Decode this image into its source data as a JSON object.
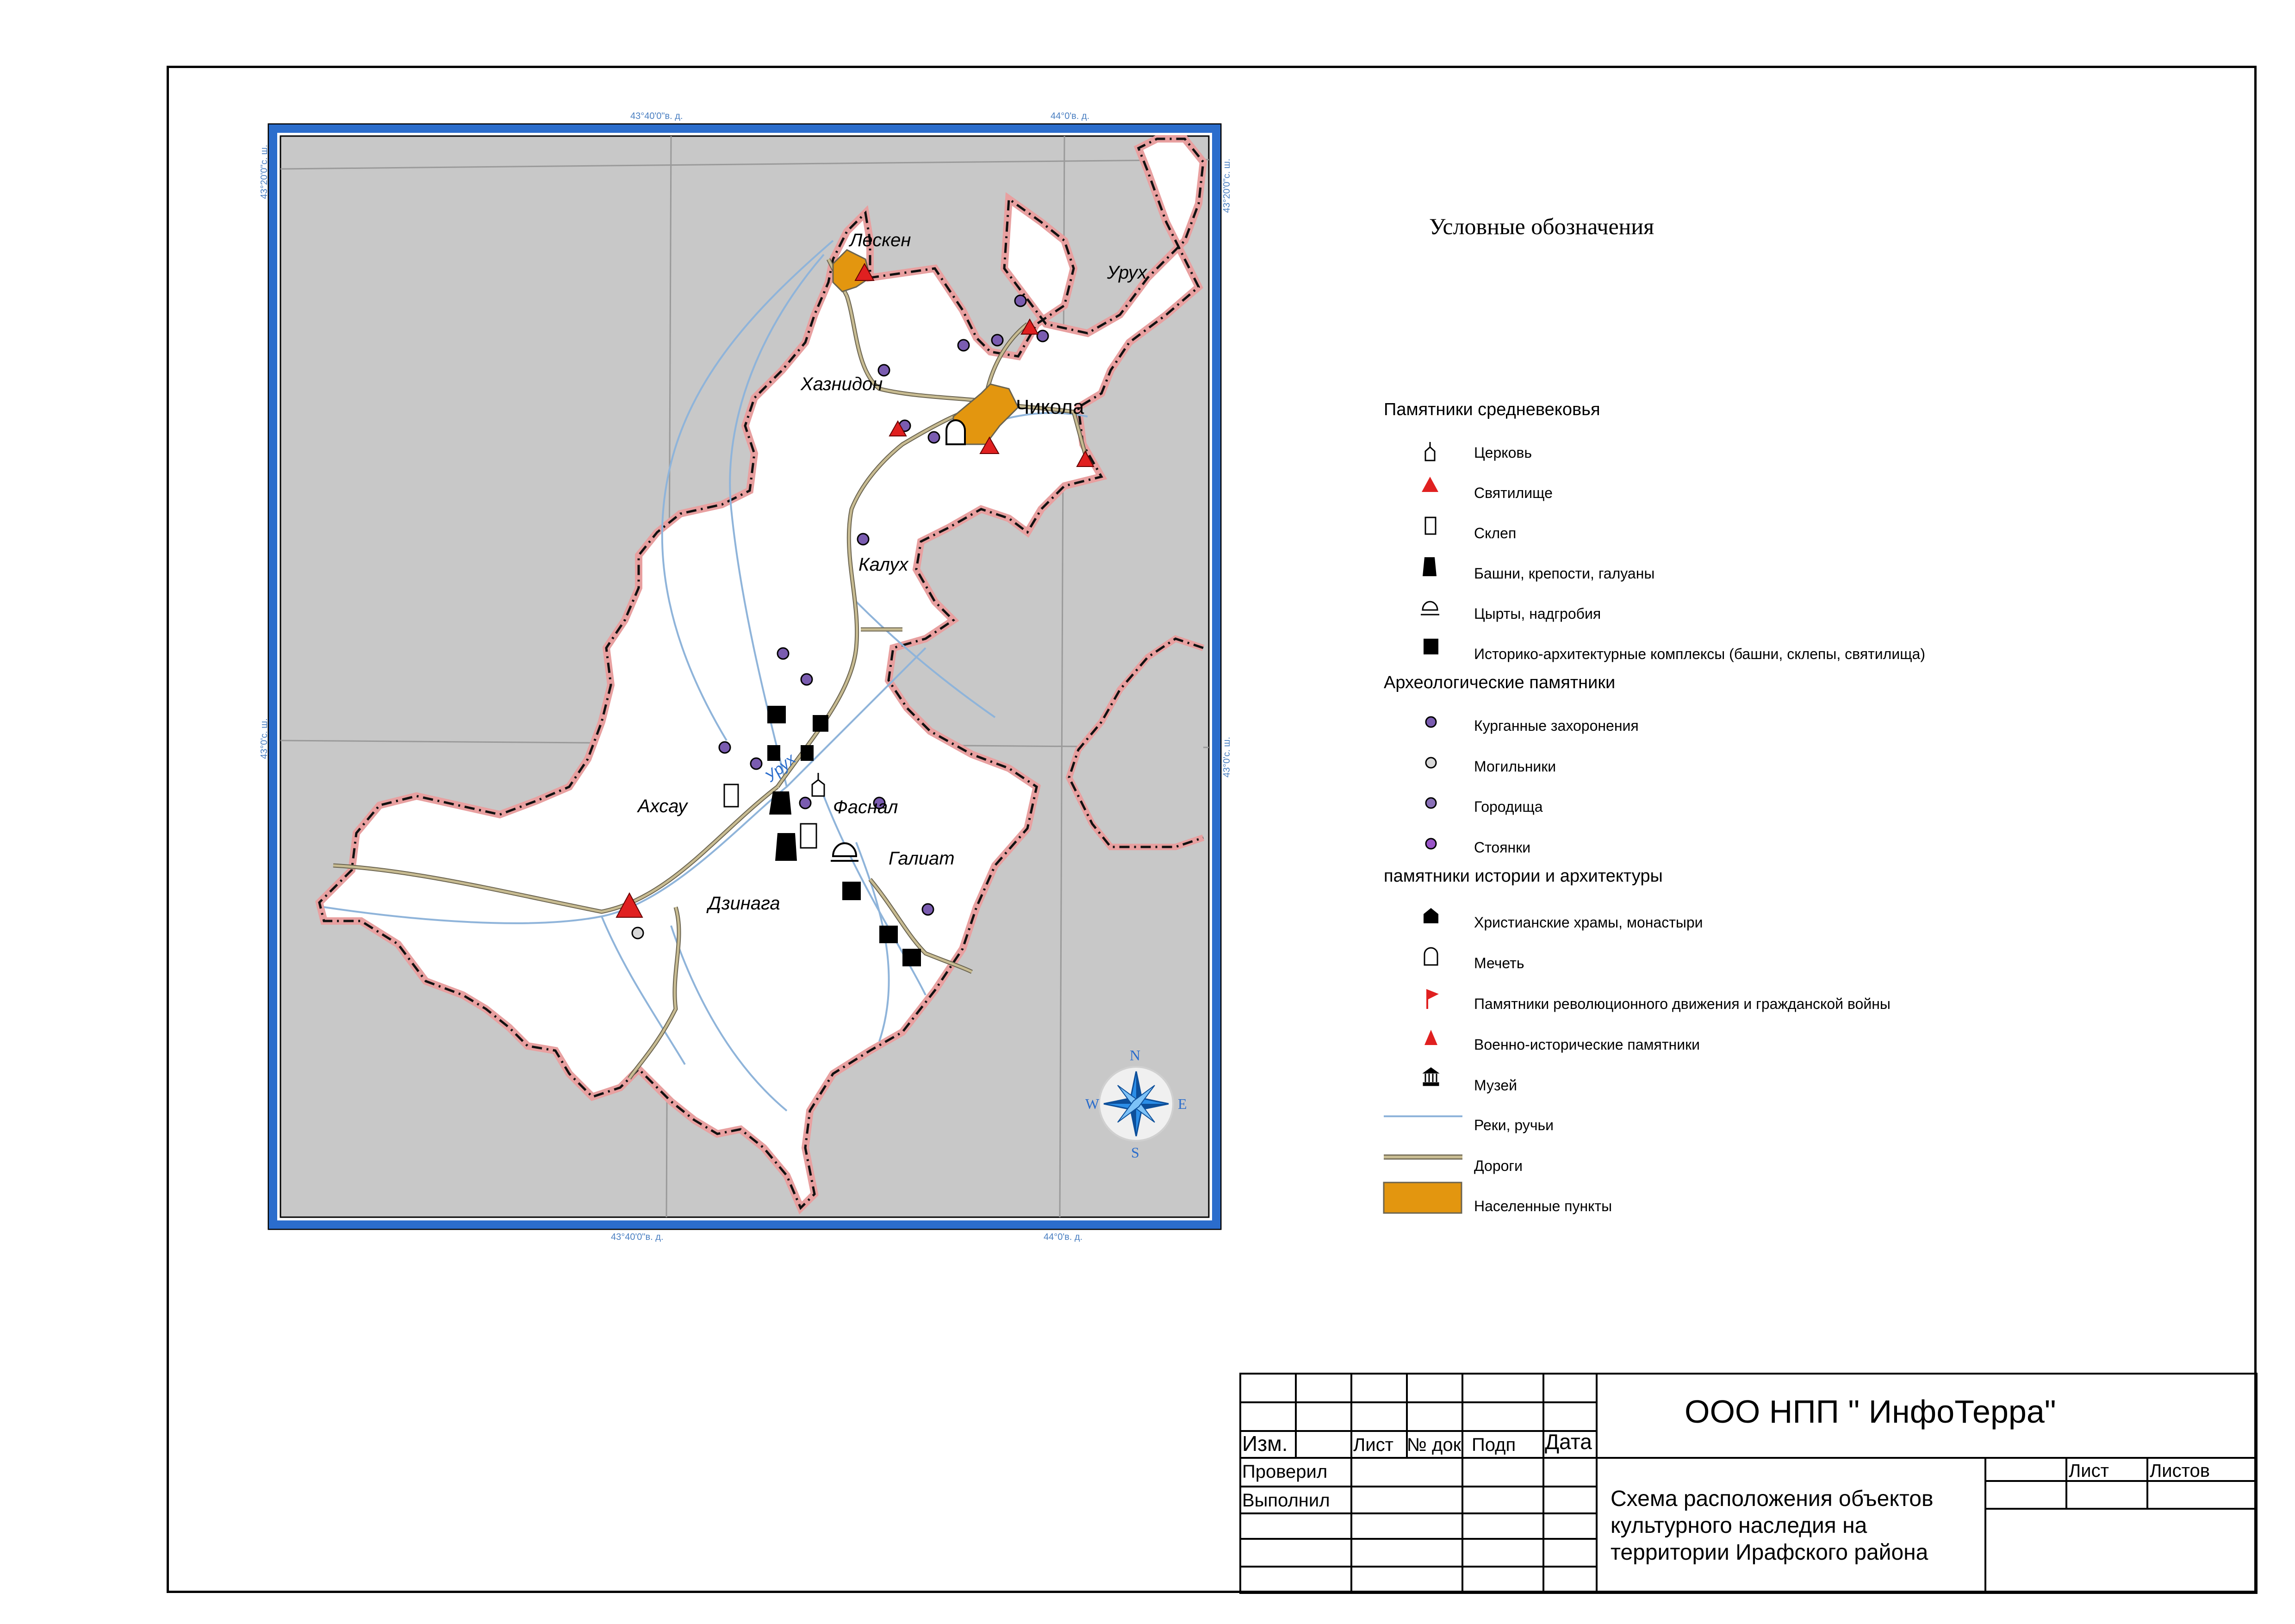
{
  "map": {
    "coords": {
      "top_left": "43°40'0\"в. д.",
      "top_right": "44°0'в. д.",
      "bottom_left": "43°40'0\"в. д.",
      "bottom_right": "44°0'в. д.",
      "left_top": "43°20'0\"с. ш.",
      "left_mid": "43°0'с. ш.",
      "right_top": "43°20'0\"с. ш.",
      "right_mid": "43°0'с. ш."
    },
    "places": {
      "lesken": "Лескен",
      "urukh_ne": "Урух",
      "khaznidon": "Хазнидон",
      "chikola": "Чикола",
      "kalukh": "Калух",
      "urukh_river": "Урух",
      "akhsau": "Ахсау",
      "fasnal": "Фаснал",
      "galiat": "Галиат",
      "dzinaga": "Дзинага"
    },
    "compass": {
      "n": "N",
      "s": "S",
      "e": "E",
      "w": "W"
    },
    "colors": {
      "background": "#c8c8c8",
      "district": "#ffffff",
      "border_dash": "#e02828",
      "river": "#8fb4da",
      "road": "#c8bc92",
      "settlement": "#e3960f",
      "frame_blue": "#2b6dcc",
      "coord_text": "#4a7fc1"
    }
  },
  "legend": {
    "title": "Условные обозначения",
    "groups": {
      "medieval": "Памятники средневековья",
      "archaeology": "Археологические памятники",
      "history": "памятники истории и  архитектуры"
    },
    "items": {
      "church": "Церковь",
      "sanctuary": "Святилище",
      "crypt": "Склеп",
      "towers": "Башни, крепости, галуаны",
      "tsyrty": "Цырты, надгробия",
      "complexes": "Историко-архитектурные комплексы (башни, склепы, святилища)",
      "kurgans": "Курганные захоронения",
      "burials": "Могильники",
      "settlements_old": "Городища",
      "camps": "Стоянки",
      "temples": "Христианские храмы, монастыри",
      "mosque": "Мечеть",
      "revolution": "Памятники революционного движения и гражданской войны",
      "military": "Военно-исторические памятники",
      "museum": "Музей",
      "rivers": "Реки, ручьи",
      "roads": "Дороги",
      "inhabited": "Населенные пункты"
    }
  },
  "stamp": {
    "izm": "Изм.",
    "list": "Лист",
    "ndok": "№ док",
    "podp": "Подп",
    "data": "Дата",
    "proveril": "Проверил",
    "vypolnil": "Выполнил",
    "list2": "Лист",
    "listov": "Листов",
    "org": "ООО НПП \" ИнфоТерра\"",
    "title": "Схема расположения объектов\n культурного наследия на\nтерритории Ирафского района"
  }
}
